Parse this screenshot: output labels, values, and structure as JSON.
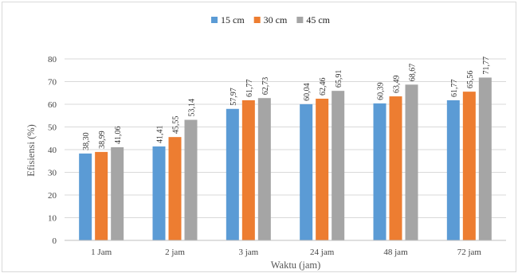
{
  "chart_data": {
    "type": "bar",
    "title": "",
    "xlabel": "Waktu (jam)",
    "ylabel": "Efisiensi (%)",
    "ylim": [
      0,
      80
    ],
    "yticks": [
      0,
      10,
      20,
      30,
      40,
      50,
      60,
      70,
      80
    ],
    "grid": true,
    "legend_position": "top",
    "categories": [
      "1 Jam",
      "2 jam",
      "3 jam",
      "24 jam",
      "48 jam",
      "72 jam"
    ],
    "series": [
      {
        "name": "15 cm",
        "color": "#5b9bd5",
        "values": [
          38.3,
          41.41,
          57.97,
          60.04,
          60.39,
          61.77
        ],
        "labels": [
          "38,30",
          "41,41",
          "57,97",
          "60,04",
          "60,39",
          "61,77"
        ]
      },
      {
        "name": "30 cm",
        "color": "#ed7d31",
        "values": [
          38.99,
          45.55,
          61.77,
          62.46,
          63.49,
          65.56
        ],
        "labels": [
          "38,99",
          "45,55",
          "61,77",
          "62,46",
          "63,49",
          "65,56"
        ]
      },
      {
        "name": "45 cm",
        "color": "#a5a5a5",
        "values": [
          41.06,
          53.14,
          62.73,
          65.91,
          68.67,
          71.77
        ],
        "labels": [
          "41,06",
          "53,14",
          "62,73",
          "65,91",
          "68,67",
          "71,77"
        ]
      }
    ]
  }
}
